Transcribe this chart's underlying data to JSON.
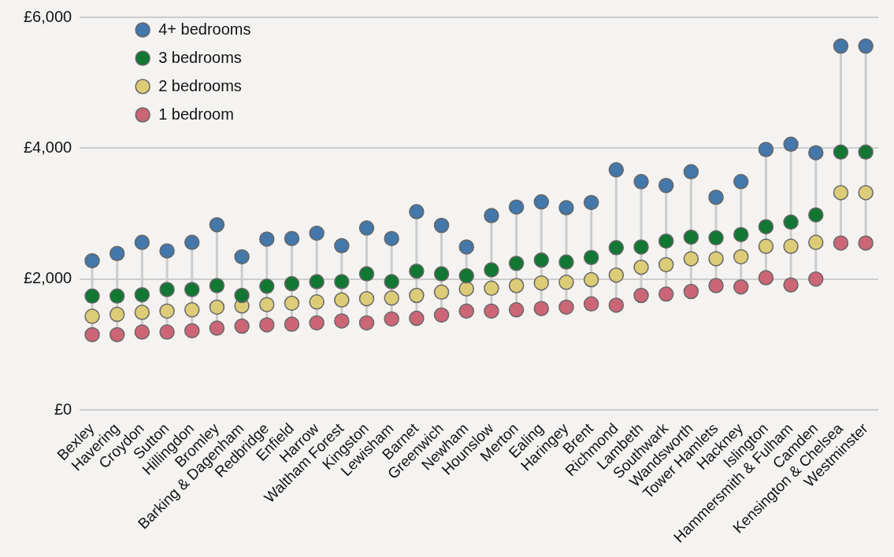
{
  "chart_data": {
    "type": "scatter",
    "marker": "circle",
    "grid": "y",
    "legend": "top left",
    "categories": [
      "Bexley",
      "Havering",
      "Croydon",
      "Sutton",
      "Hillingdon",
      "Bromley",
      "Barking & Dagenham",
      "Redbridge",
      "Enfield",
      "Harrow",
      "Waltham Forest",
      "Kingston",
      "Lewisham",
      "Barnet",
      "Greenwich",
      "Newham",
      "Hounslow",
      "Merton",
      "Ealing",
      "Haringey",
      "Brent",
      "Richmond",
      "Lambeth",
      "Southwark",
      "Wandsworth",
      "Tower Hamlets",
      "Hackney",
      "Islington",
      "Hammersmith & Fulham",
      "Camden",
      "Kensington & Chelsea",
      "Westminster"
    ],
    "ylim": [
      0,
      6000
    ],
    "yticks": [
      {
        "value": 0,
        "label": "£0"
      },
      {
        "value": 2000,
        "label": "£2,000"
      },
      {
        "value": 4000,
        "label": "£4,000"
      },
      {
        "value": 6000,
        "label": "£6,000"
      }
    ],
    "series": [
      {
        "name": "4+ bedrooms",
        "color": "#4477aa",
        "values": [
          2280,
          2390,
          2560,
          2430,
          2560,
          2830,
          2340,
          2610,
          2620,
          2700,
          2510,
          2780,
          2620,
          3030,
          2820,
          2490,
          2970,
          3100,
          3180,
          3090,
          3170,
          3670,
          3490,
          3430,
          3640,
          3250,
          3490,
          3980,
          4060,
          3930,
          5560,
          5560
        ]
      },
      {
        "name": "3 bedrooms",
        "color": "#117733",
        "values": [
          1740,
          1740,
          1760,
          1840,
          1840,
          1900,
          1750,
          1890,
          1930,
          1960,
          1960,
          2080,
          1960,
          2120,
          2080,
          2050,
          2140,
          2240,
          2290,
          2260,
          2330,
          2480,
          2490,
          2580,
          2640,
          2630,
          2680,
          2800,
          2870,
          2980,
          3940,
          3940
        ]
      },
      {
        "name": "2 bedrooms",
        "color": "#ddcc77",
        "values": [
          1430,
          1460,
          1490,
          1510,
          1530,
          1570,
          1590,
          1610,
          1630,
          1650,
          1680,
          1700,
          1710,
          1750,
          1800,
          1850,
          1860,
          1900,
          1940,
          1950,
          1990,
          2060,
          2180,
          2220,
          2310,
          2310,
          2340,
          2500,
          2500,
          2560,
          3320,
          3320
        ]
      },
      {
        "name": "1 bedroom",
        "color": "#cc6677",
        "values": [
          1150,
          1150,
          1190,
          1190,
          1210,
          1250,
          1280,
          1300,
          1310,
          1330,
          1360,
          1330,
          1390,
          1400,
          1450,
          1510,
          1510,
          1530,
          1550,
          1570,
          1620,
          1600,
          1750,
          1770,
          1810,
          1900,
          1880,
          2020,
          1910,
          2000,
          2550,
          2550
        ]
      }
    ]
  }
}
